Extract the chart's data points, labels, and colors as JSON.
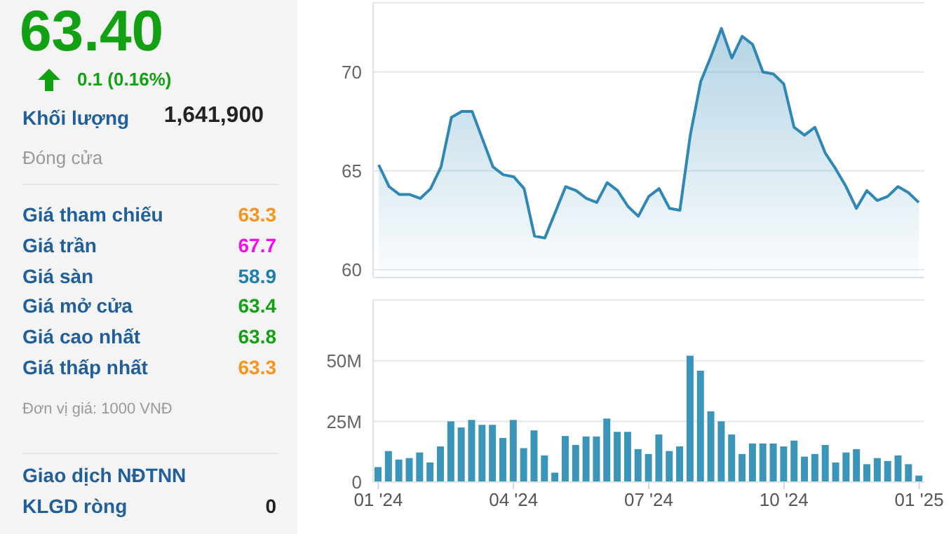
{
  "chart_data": [
    {
      "type": "other",
      "title": "63.40",
      "subtitle": "0.1 (0.16%)",
      "color": "#12a112",
      "annotations": [
        "Khối lượng",
        "1,641,900",
        "Đóng cửa",
        "Giá tham chiếu",
        "63.3",
        "Giá trần",
        "67.7",
        "Giá sàn",
        "58.9",
        "Giá mở cửa",
        "63.4",
        "Giá cao nhất",
        "63.8",
        "Giá thấp nhất",
        "63.3",
        "Đơn vị giá: 1000 VNĐ",
        "Giao dịch NĐTNN",
        "KLGD ròng",
        "0"
      ]
    },
    {
      "type": "area",
      "series": [
        {
          "color": "#2f87b5",
          "values": [
            65.3,
            64.2,
            63.8,
            63.8,
            63.6,
            64.1,
            65.2,
            67.7,
            68.0,
            68.0,
            66.6,
            65.2,
            64.8,
            64.7,
            64.1,
            61.7,
            61.6,
            62.9,
            64.2,
            64.0,
            63.6,
            63.4,
            64.4,
            64.0,
            63.2,
            62.7,
            63.7,
            64.1,
            63.1,
            63.0,
            66.8,
            69.5,
            70.8,
            72.2,
            70.7,
            71.8,
            71.4,
            70.0,
            69.9,
            69.4,
            67.2,
            66.8,
            67.2,
            65.9,
            65.1,
            64.2,
            63.1,
            64.0,
            63.5,
            63.7,
            64.2,
            63.9,
            63.4
          ]
        }
      ],
      "ylim": [
        59.6,
        73.5
      ],
      "yticks": [
        60,
        65,
        70
      ],
      "grid": "y",
      "tick_labels": "y"
    },
    {
      "type": "bar",
      "categories": [
        "01 '24",
        null,
        null,
        null,
        null,
        null,
        null,
        null,
        null,
        null,
        null,
        null,
        null,
        "04 '24",
        null,
        null,
        null,
        null,
        null,
        null,
        null,
        null,
        null,
        null,
        null,
        null,
        "07 '24",
        null,
        null,
        null,
        null,
        null,
        null,
        null,
        null,
        null,
        null,
        null,
        null,
        "10 '24",
        null,
        null,
        null,
        null,
        null,
        null,
        null,
        null,
        null,
        null,
        null,
        null,
        "01 '25"
      ],
      "series": [
        {
          "color": "#3b95b8",
          "values": [
            6.2,
            12.8,
            9.3,
            9.9,
            12.2,
            8.1,
            14.7,
            25,
            22.5,
            25.6,
            23.6,
            23.6,
            18.2,
            25.6,
            14,
            21.3,
            11,
            3.9,
            19,
            15.3,
            18.8,
            18.8,
            26.2,
            20.7,
            20.7,
            13.6,
            11.6,
            19.6,
            12.8,
            14.7,
            52.1,
            45.9,
            29.1,
            25,
            19.6,
            11.6,
            15.9,
            15.9,
            15.9,
            14.7,
            17.1,
            10.5,
            11.6,
            15.3,
            8.1,
            12.2,
            13.6,
            7.4,
            9.9,
            8.7,
            11,
            7.4,
            2.7
          ]
        }
      ],
      "ylim": [
        0,
        75
      ],
      "yticks": [
        0,
        {
          "value": 25,
          "label": "25M"
        },
        {
          "value": 50,
          "label": "50M"
        }
      ],
      "grid": "y"
    }
  ]
}
